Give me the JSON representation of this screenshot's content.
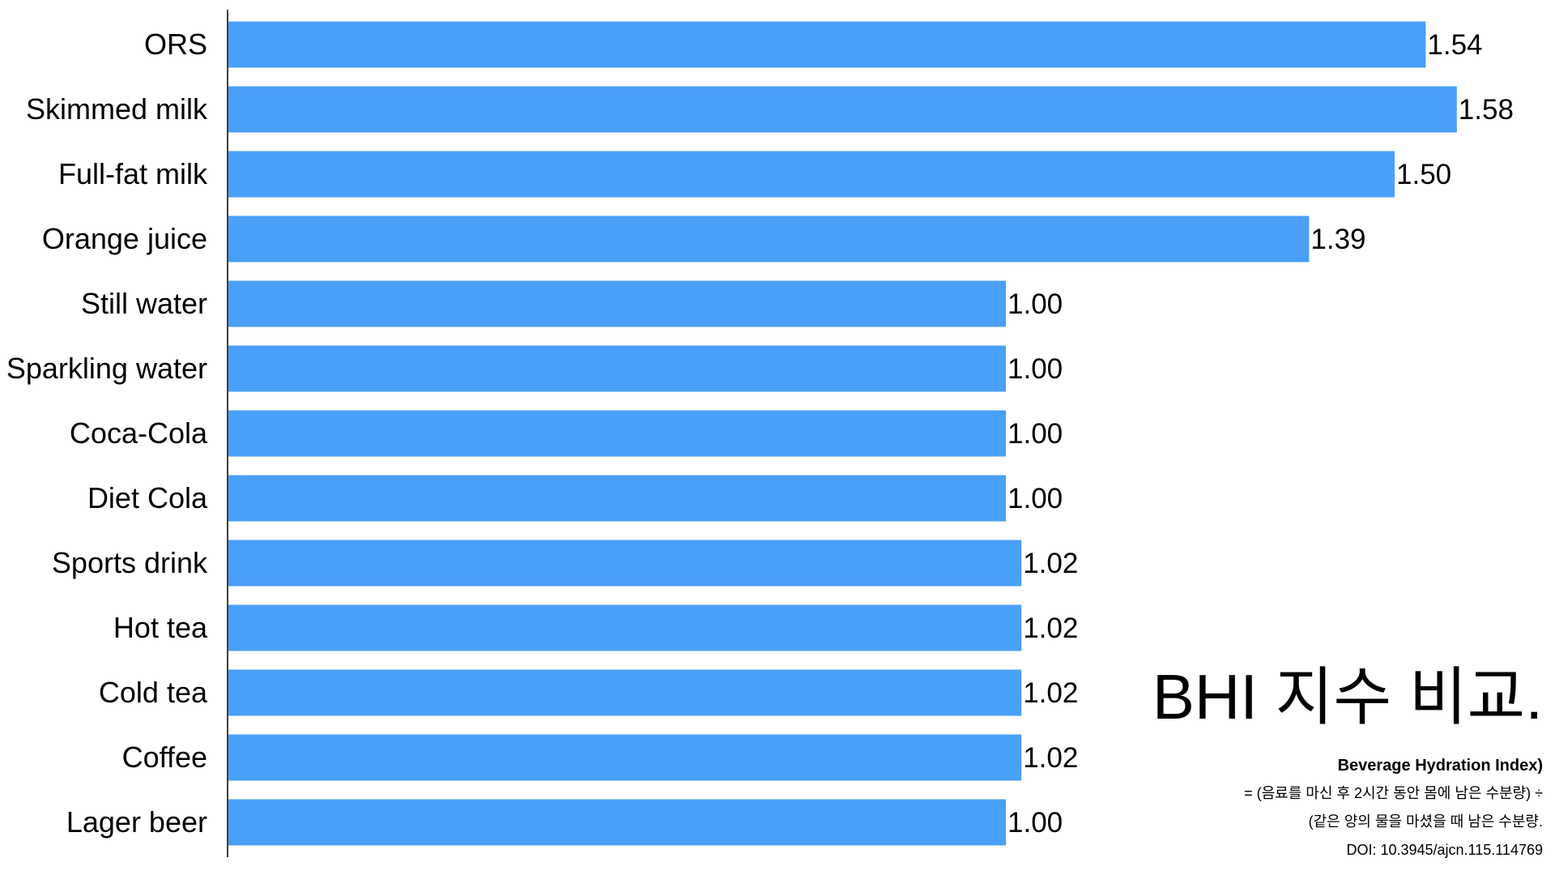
{
  "chart_data": {
    "type": "bar",
    "orientation": "horizontal",
    "categories": [
      "ORS",
      "Skimmed milk",
      "Full-fat milk",
      "Orange juice",
      "Still water",
      "Sparkling water",
      "Coca-Cola",
      "Diet Cola",
      "Sports drink",
      "Hot tea",
      "Cold tea",
      "Coffee",
      "Lager beer"
    ],
    "values": [
      1.54,
      1.58,
      1.5,
      1.39,
      1.0,
      1.0,
      1.0,
      1.0,
      1.02,
      1.02,
      1.02,
      1.02,
      1.0
    ],
    "value_labels": [
      "1.54",
      "1.58",
      "1.50",
      "1.39",
      "1.00",
      "1.00",
      "1.00",
      "1.00",
      "1.02",
      "1.02",
      "1.02",
      "1.02",
      "1.00"
    ],
    "bar_color": "#4A9FF8",
    "xlim": [
      0,
      1.6
    ],
    "grid": false,
    "title": "BHI 지수 비교.",
    "annotations": [
      "Beverage Hydration Index)",
      "= (음료를 마신 후 2시간 동안 몸에 남은 수분량) ÷",
      "(같은 양의 물을 마셨을 때 남은 수분량.",
      "DOI: 10.3945/ajcn.115.114769"
    ]
  }
}
